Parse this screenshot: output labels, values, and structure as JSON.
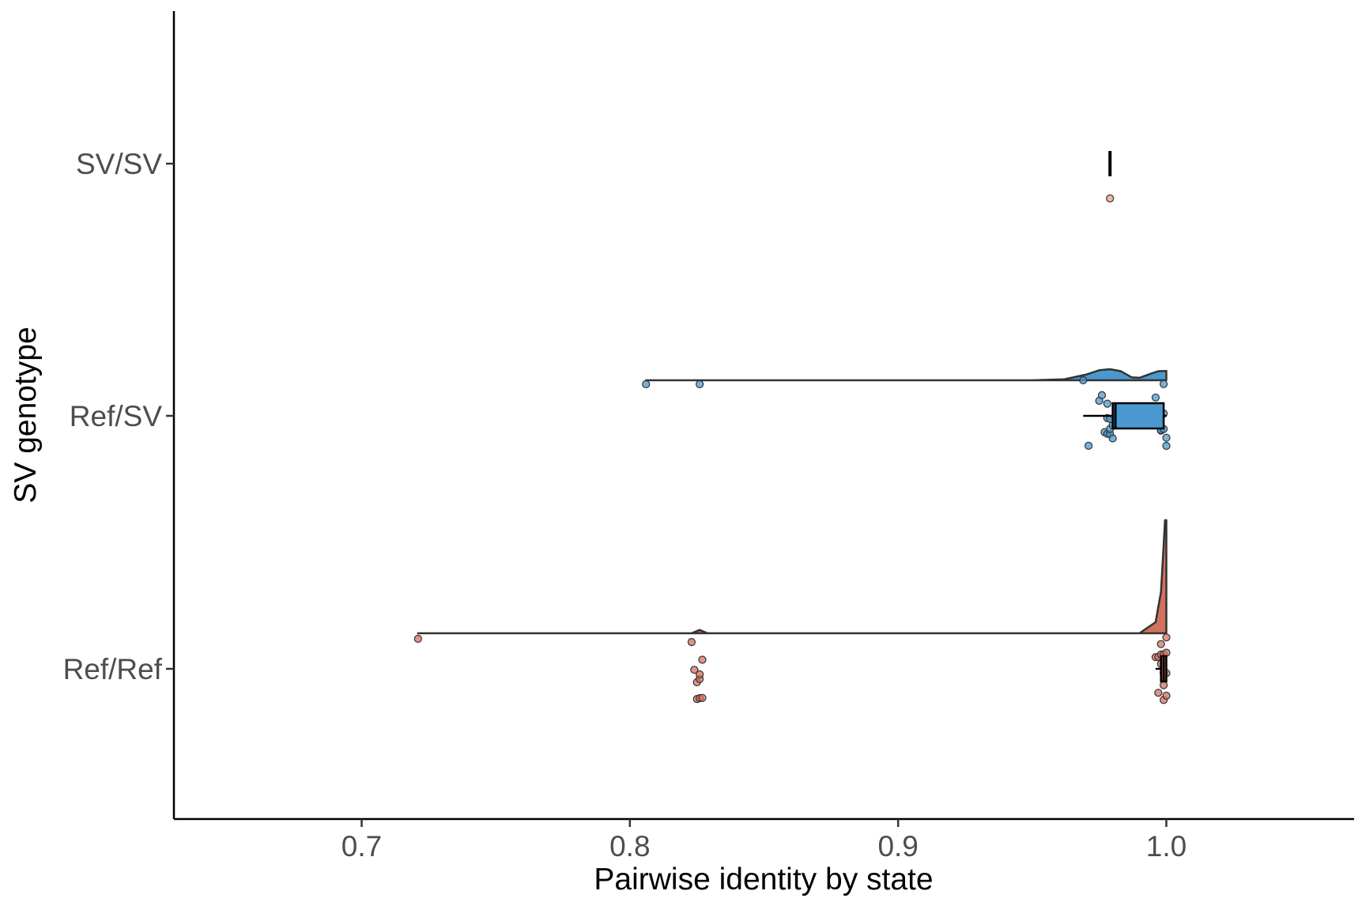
{
  "chart_data": {
    "type": "raincloud",
    "orientation": "horizontal",
    "title": "",
    "xlabel": "Pairwise identity by state",
    "ylabel": "SV genotype",
    "xlim": [
      0.63,
      1.07
    ],
    "x_ticks": [
      0.7,
      0.8,
      0.9,
      1.0
    ],
    "x_tick_labels": [
      "0.7",
      "0.8",
      "0.9",
      "1.0"
    ],
    "categories": [
      "SV/SV",
      "Ref/SV",
      "Ref/Ref"
    ],
    "grid": false,
    "legend": "none",
    "series": [
      {
        "category": "SV/SV",
        "color": "#e8a27c",
        "points": [
          0.979
        ],
        "box": {
          "q1": 0.979,
          "median": 0.979,
          "q3": 0.979,
          "whisker_low": 0.979,
          "whisker_high": 0.979
        },
        "density": null
      },
      {
        "category": "Ref/SV",
        "color": "#4a98cf",
        "points": [
          0.806,
          0.826,
          0.969,
          0.971,
          0.975,
          0.976,
          0.977,
          0.978,
          0.978,
          0.978,
          0.979,
          0.979,
          0.979,
          0.98,
          0.98,
          0.996,
          0.997,
          0.998,
          0.998,
          0.999,
          0.999,
          0.999,
          1.0,
          1.0
        ],
        "box": {
          "q1": 0.98,
          "median": 0.981,
          "q3": 0.999,
          "whisker_low": 0.969,
          "whisker_high": 1.0
        },
        "density": {
          "x": [
            0.806,
            0.95,
            0.962,
            0.97,
            0.975,
            0.979,
            0.983,
            0.987,
            0.99,
            0.994,
            0.997,
            1.0
          ],
          "y": [
            0.0,
            0.0,
            0.05,
            0.28,
            0.5,
            0.55,
            0.45,
            0.15,
            0.12,
            0.32,
            0.45,
            0.46
          ]
        }
      },
      {
        "category": "Ref/Ref",
        "color": "#d4705f",
        "points": [
          0.721,
          0.823,
          0.824,
          0.825,
          0.825,
          0.826,
          0.826,
          0.826,
          0.827,
          0.827,
          0.996,
          0.997,
          0.997,
          0.998,
          0.998,
          0.998,
          0.999,
          0.999,
          0.999,
          0.999,
          1.0,
          1.0,
          1.0,
          1.0
        ],
        "box": {
          "q1": 0.998,
          "median": 0.999,
          "q3": 1.0,
          "whisker_low": 0.996,
          "whisker_high": 1.0
        },
        "density": {
          "x": [
            0.721,
            0.823,
            0.826,
            0.829,
            0.99,
            0.996,
            0.998,
            0.999,
            0.9995,
            1.0
          ],
          "y": [
            0.0,
            0.0,
            0.12,
            0.0,
            0.0,
            0.4,
            1.5,
            3.2,
            4.1,
            4.1
          ]
        }
      }
    ]
  }
}
